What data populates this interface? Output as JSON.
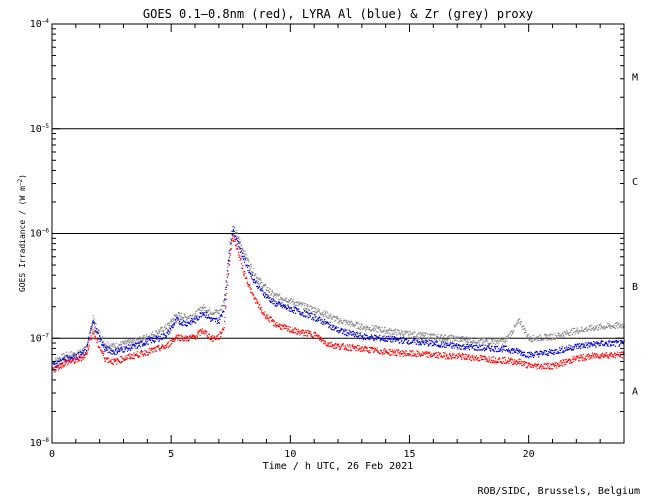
{
  "credit": "ROB/SIDC, Brussels, Belgium",
  "colors": {
    "goes": "#ff0000",
    "lyra_al": "#0000cc",
    "zr_proxy": "#8a8a8a",
    "axes": "#000000"
  },
  "chart_data": {
    "type": "scatter",
    "title": "GOES 0.1–0.8nm (red), LYRA Al (blue) & Zr (grey) proxy",
    "xlabel": "Time / h UTC, 26 Feb 2021",
    "ylabel": {
      "base": "GOES Irradiance / (W m",
      "sup": "−2",
      "close": ")"
    },
    "xlim": [
      0,
      24
    ],
    "ylim": [
      1e-08,
      0.0001
    ],
    "yscale": "log",
    "x_ticks": [
      0,
      5,
      10,
      15,
      20
    ],
    "x_tick_labels": [
      "0",
      "5",
      "10",
      "15",
      "20"
    ],
    "y_ticks": [
      1e-08,
      1e-07,
      1e-06,
      1e-05,
      0.0001
    ],
    "y_tick_labels": [
      {
        "base": "10",
        "exp": "−8"
      },
      {
        "base": "10",
        "exp": "−7"
      },
      {
        "base": "10",
        "exp": "−6"
      },
      {
        "base": "10",
        "exp": "−5"
      },
      {
        "base": "10",
        "exp": "−4"
      }
    ],
    "class_lines": [
      1e-07,
      1e-06,
      1e-05
    ],
    "class_labels": [
      {
        "label": "A",
        "value": 3.16e-08
      },
      {
        "label": "B",
        "value": 3.16e-07
      },
      {
        "label": "C",
        "value": 3.16e-06
      },
      {
        "label": "M",
        "value": 3.16e-05
      }
    ],
    "legend": "none",
    "series": [
      {
        "name": "GOES 0.1–0.8nm",
        "color": "#ff0000",
        "points": [
          [
            0.0,
            5e-08
          ],
          [
            0.3,
            5.5e-08
          ],
          [
            0.6,
            6e-08
          ],
          [
            1.0,
            6.2e-08
          ],
          [
            1.4,
            7e-08
          ],
          [
            1.7,
            1.2e-07
          ],
          [
            1.9,
            9e-08
          ],
          [
            2.2,
            6.5e-08
          ],
          [
            2.6,
            6e-08
          ],
          [
            3.0,
            6.5e-08
          ],
          [
            3.5,
            7e-08
          ],
          [
            4.0,
            7.5e-08
          ],
          [
            4.4,
            8e-08
          ],
          [
            4.8,
            8.5e-08
          ],
          [
            5.2,
            1.05e-07
          ],
          [
            5.6,
            1e-07
          ],
          [
            6.0,
            1.05e-07
          ],
          [
            6.3,
            1.2e-07
          ],
          [
            6.7,
            1e-07
          ],
          [
            7.0,
            1.05e-07
          ],
          [
            7.2,
            1.3e-07
          ],
          [
            7.4,
            5e-07
          ],
          [
            7.55,
            9.5e-07
          ],
          [
            7.7,
            8e-07
          ],
          [
            8.0,
            4.5e-07
          ],
          [
            8.4,
            2.6e-07
          ],
          [
            8.8,
            1.8e-07
          ],
          [
            9.3,
            1.4e-07
          ],
          [
            9.8,
            1.25e-07
          ],
          [
            10.4,
            1.15e-07
          ],
          [
            11.0,
            1.1e-07
          ],
          [
            11.5,
            9e-08
          ],
          [
            12.0,
            8.5e-08
          ],
          [
            13.0,
            8e-08
          ],
          [
            14.0,
            7.5e-08
          ],
          [
            15.0,
            7.2e-08
          ],
          [
            16.0,
            7e-08
          ],
          [
            17.0,
            6.8e-08
          ],
          [
            18.0,
            6.5e-08
          ],
          [
            19.0,
            6.2e-08
          ],
          [
            19.6,
            6e-08
          ],
          [
            20.0,
            5.5e-08
          ],
          [
            21.0,
            5.5e-08
          ],
          [
            22.0,
            6.5e-08
          ],
          [
            23.0,
            7e-08
          ],
          [
            24.0,
            7e-08
          ]
        ]
      },
      {
        "name": "LYRA Al proxy",
        "color": "#0000cc",
        "points": [
          [
            0.0,
            5.5e-08
          ],
          [
            0.3,
            6e-08
          ],
          [
            0.6,
            6.5e-08
          ],
          [
            1.0,
            6.8e-08
          ],
          [
            1.4,
            7.5e-08
          ],
          [
            1.7,
            1.45e-07
          ],
          [
            1.9,
            1.1e-07
          ],
          [
            2.2,
            8e-08
          ],
          [
            2.6,
            7.5e-08
          ],
          [
            3.0,
            8e-08
          ],
          [
            3.5,
            8.5e-08
          ],
          [
            4.0,
            9.5e-08
          ],
          [
            4.4,
            1e-07
          ],
          [
            4.8,
            1.1e-07
          ],
          [
            5.2,
            1.5e-07
          ],
          [
            5.6,
            1.4e-07
          ],
          [
            6.0,
            1.5e-07
          ],
          [
            6.3,
            1.8e-07
          ],
          [
            6.7,
            1.5e-07
          ],
          [
            7.0,
            1.5e-07
          ],
          [
            7.2,
            2e-07
          ],
          [
            7.4,
            6e-07
          ],
          [
            7.55,
            1.05e-06
          ],
          [
            7.7,
            9.5e-07
          ],
          [
            8.0,
            6e-07
          ],
          [
            8.4,
            3.8e-07
          ],
          [
            8.8,
            2.8e-07
          ],
          [
            9.3,
            2.2e-07
          ],
          [
            9.8,
            2e-07
          ],
          [
            10.4,
            1.8e-07
          ],
          [
            11.0,
            1.6e-07
          ],
          [
            11.5,
            1.4e-07
          ],
          [
            12.0,
            1.2e-07
          ],
          [
            13.0,
            1.05e-07
          ],
          [
            14.0,
            1e-07
          ],
          [
            15.0,
            9.5e-08
          ],
          [
            16.0,
            9e-08
          ],
          [
            17.0,
            8.5e-08
          ],
          [
            18.0,
            8.2e-08
          ],
          [
            19.0,
            8e-08
          ],
          [
            19.6,
            7.5e-08
          ],
          [
            20.0,
            7e-08
          ],
          [
            21.0,
            7.5e-08
          ],
          [
            22.0,
            8.5e-08
          ],
          [
            23.0,
            9e-08
          ],
          [
            24.0,
            9e-08
          ]
        ]
      },
      {
        "name": "LYRA Zr proxy",
        "color": "#8a8a8a",
        "points": [
          [
            0.0,
            6e-08
          ],
          [
            0.3,
            6.5e-08
          ],
          [
            0.6,
            7e-08
          ],
          [
            1.0,
            7.2e-08
          ],
          [
            1.4,
            8e-08
          ],
          [
            1.7,
            1.55e-07
          ],
          [
            1.9,
            1.2e-07
          ],
          [
            2.2,
            9e-08
          ],
          [
            2.6,
            8.5e-08
          ],
          [
            3.0,
            9e-08
          ],
          [
            3.5,
            9.5e-08
          ],
          [
            4.0,
            1.05e-07
          ],
          [
            4.4,
            1.15e-07
          ],
          [
            4.8,
            1.3e-07
          ],
          [
            5.2,
            1.7e-07
          ],
          [
            5.6,
            1.6e-07
          ],
          [
            6.0,
            1.7e-07
          ],
          [
            6.3,
            2e-07
          ],
          [
            6.7,
            1.8e-07
          ],
          [
            7.0,
            1.8e-07
          ],
          [
            7.2,
            2.3e-07
          ],
          [
            7.4,
            7e-07
          ],
          [
            7.55,
            1.15e-06
          ],
          [
            7.7,
            1.05e-06
          ],
          [
            8.0,
            7e-07
          ],
          [
            8.4,
            4.5e-07
          ],
          [
            8.8,
            3.3e-07
          ],
          [
            9.3,
            2.6e-07
          ],
          [
            9.8,
            2.4e-07
          ],
          [
            10.4,
            2.1e-07
          ],
          [
            11.0,
            1.9e-07
          ],
          [
            11.5,
            1.7e-07
          ],
          [
            12.0,
            1.5e-07
          ],
          [
            13.0,
            1.3e-07
          ],
          [
            14.0,
            1.2e-07
          ],
          [
            15.0,
            1.1e-07
          ],
          [
            16.0,
            1.05e-07
          ],
          [
            17.0,
            1e-07
          ],
          [
            18.0,
            9.5e-08
          ],
          [
            19.0,
            9.5e-08
          ],
          [
            19.6,
            1.5e-07
          ],
          [
            20.0,
            1e-07
          ],
          [
            21.0,
            1.05e-07
          ],
          [
            22.0,
            1.2e-07
          ],
          [
            23.0,
            1.3e-07
          ],
          [
            24.0,
            1.35e-07
          ]
        ]
      }
    ]
  }
}
